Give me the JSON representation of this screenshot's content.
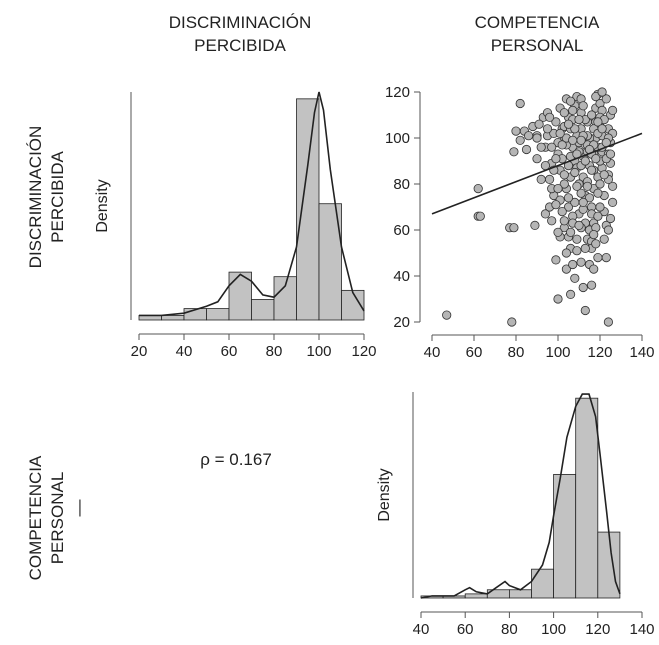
{
  "header": {
    "col1": [
      "DISCRIMINACIÓN",
      "PERCIBIDA"
    ],
    "col2": [
      "COMPETENCIA",
      "PERSONAL"
    ]
  },
  "row_labels": {
    "row1": [
      "DISCRIMINACIÓN",
      "PERCIBIDA"
    ],
    "row2": [
      "COMPETENCIA",
      "PERSONAL"
    ],
    "row2_mark": "—"
  },
  "correlation_text": "ρ = 0.167",
  "colors": {
    "bar_fill": "#c2c2c2",
    "bar_stroke": "#222222",
    "point_fill": "#b5b5b5",
    "point_stroke": "#333333",
    "line": "#222222",
    "axis": "#555555"
  },
  "chart_data": [
    {
      "id": "hist_discriminacion",
      "type": "bar",
      "ylabel": "Density",
      "xlim": [
        20,
        120
      ],
      "x_ticks": [
        "20",
        "40",
        "60",
        "80",
        "100",
        "120"
      ],
      "bins": [
        {
          "x0": 20,
          "x1": 30,
          "value": 0.02
        },
        {
          "x0": 30,
          "x1": 40,
          "value": 0.02
        },
        {
          "x0": 40,
          "x1": 50,
          "value": 0.05
        },
        {
          "x0": 50,
          "x1": 60,
          "value": 0.05
        },
        {
          "x0": 60,
          "x1": 70,
          "value": 0.21
        },
        {
          "x0": 70,
          "x1": 80,
          "value": 0.09
        },
        {
          "x0": 80,
          "x1": 90,
          "value": 0.19
        },
        {
          "x0": 90,
          "x1": 100,
          "value": 0.97
        },
        {
          "x0": 100,
          "x1": 110,
          "value": 0.51
        },
        {
          "x0": 110,
          "x1": 120,
          "value": 0.13
        }
      ],
      "density_curve": [
        [
          20,
          0.02
        ],
        [
          30,
          0.02
        ],
        [
          40,
          0.03
        ],
        [
          50,
          0.06
        ],
        [
          55,
          0.08
        ],
        [
          60,
          0.15
        ],
        [
          65,
          0.2
        ],
        [
          70,
          0.17
        ],
        [
          75,
          0.11
        ],
        [
          80,
          0.1
        ],
        [
          85,
          0.15
        ],
        [
          90,
          0.32
        ],
        [
          95,
          0.68
        ],
        [
          98,
          0.91
        ],
        [
          100,
          1.0
        ],
        [
          102,
          0.92
        ],
        [
          105,
          0.66
        ],
        [
          110,
          0.32
        ],
        [
          115,
          0.12
        ],
        [
          120,
          0.04
        ]
      ]
    },
    {
      "id": "scatter_competencia_vs_discriminacion",
      "type": "scatter",
      "xlim": [
        40,
        140
      ],
      "ylim": [
        20,
        120
      ],
      "x_ticks": [
        "40",
        "60",
        "80",
        "100",
        "120",
        "140"
      ],
      "y_ticks": [
        "20",
        "40",
        "60",
        "80",
        "100",
        "120"
      ],
      "fit_line": [
        [
          40,
          67
        ],
        [
          140,
          102
        ]
      ],
      "points": [
        [
          47,
          23
        ],
        [
          62,
          78
        ],
        [
          62,
          66
        ],
        [
          63,
          66
        ],
        [
          77,
          61
        ],
        [
          79,
          61
        ],
        [
          78,
          20
        ],
        [
          82,
          115
        ],
        [
          80,
          103
        ],
        [
          82,
          99
        ],
        [
          84,
          103
        ],
        [
          86,
          101
        ],
        [
          88,
          105
        ],
        [
          90,
          101
        ],
        [
          79,
          94
        ],
        [
          85,
          95
        ],
        [
          93,
          109
        ],
        [
          95,
          111
        ],
        [
          89,
          62
        ],
        [
          94,
          67
        ],
        [
          96,
          70
        ],
        [
          98,
          75
        ],
        [
          92,
          82
        ],
        [
          96,
          82
        ],
        [
          97,
          89
        ],
        [
          94,
          96
        ],
        [
          100,
          93
        ],
        [
          95,
          101
        ],
        [
          90,
          91
        ],
        [
          100,
          30
        ],
        [
          101,
          57
        ],
        [
          103,
          61
        ],
        [
          99,
          47
        ],
        [
          104,
          43
        ],
        [
          105,
          70
        ],
        [
          104,
          78
        ],
        [
          106,
          83
        ],
        [
          108,
          90
        ],
        [
          107,
          96
        ],
        [
          103,
          99
        ],
        [
          102,
          104
        ],
        [
          105,
          109
        ],
        [
          108,
          114
        ],
        [
          109,
          118
        ],
        [
          111,
          117
        ],
        [
          111,
          111
        ],
        [
          111,
          104
        ],
        [
          110,
          98
        ],
        [
          112,
          92
        ],
        [
          112,
          83
        ],
        [
          113,
          75
        ],
        [
          113,
          63
        ],
        [
          112,
          35
        ],
        [
          113,
          25
        ],
        [
          114,
          56
        ],
        [
          115,
          45
        ],
        [
          116,
          55
        ],
        [
          117,
          63
        ],
        [
          116,
          70
        ],
        [
          117,
          78
        ],
        [
          117,
          86
        ],
        [
          117,
          93
        ],
        [
          118,
          100
        ],
        [
          118,
          107
        ],
        [
          118,
          113
        ],
        [
          119,
          119
        ],
        [
          120,
          115
        ],
        [
          121,
          112
        ],
        [
          120,
          105
        ],
        [
          121,
          101
        ],
        [
          121,
          94
        ],
        [
          121,
          87
        ],
        [
          122,
          75
        ],
        [
          122,
          68
        ],
        [
          123,
          62
        ],
        [
          122,
          56
        ],
        [
          123,
          48
        ],
        [
          124,
          20
        ],
        [
          125,
          65
        ],
        [
          124,
          84
        ],
        [
          124,
          93
        ],
        [
          125,
          98
        ],
        [
          124,
          104
        ],
        [
          125,
          110
        ],
        [
          126,
          102
        ],
        [
          126,
          112
        ],
        [
          123,
          117
        ],
        [
          101,
          113
        ],
        [
          103,
          105
        ],
        [
          104,
          97
        ],
        [
          101,
          86
        ],
        [
          103,
          80
        ],
        [
          101,
          73
        ],
        [
          103,
          64
        ],
        [
          105,
          57
        ],
        [
          106,
          52
        ],
        [
          107,
          45
        ],
        [
          108,
          39
        ],
        [
          106,
          32
        ],
        [
          106,
          104
        ],
        [
          107,
          108
        ],
        [
          109,
          101
        ],
        [
          110,
          94
        ],
        [
          109,
          87
        ],
        [
          110,
          80
        ],
        [
          108,
          72
        ],
        [
          110,
          67
        ],
        [
          111,
          61
        ],
        [
          109,
          51
        ],
        [
          114,
          107
        ],
        [
          115,
          100
        ],
        [
          114,
          94
        ],
        [
          115,
          88
        ],
        [
          114,
          81
        ],
        [
          115,
          74
        ],
        [
          116,
          67
        ],
        [
          115,
          60
        ],
        [
          116,
          52
        ],
        [
          114,
          101
        ],
        [
          113,
          108
        ],
        [
          112,
          114
        ],
        [
          117,
          104
        ],
        [
          119,
          96
        ],
        [
          120,
          90
        ],
        [
          119,
          83
        ],
        [
          119,
          76
        ],
        [
          120,
          70
        ],
        [
          118,
          61
        ],
        [
          118,
          54
        ],
        [
          119,
          48
        ],
        [
          117,
          43
        ],
        [
          116,
          36
        ],
        [
          118,
          118
        ],
        [
          120,
          109
        ],
        [
          121,
          120
        ],
        [
          99,
          107
        ],
        [
          98,
          102
        ],
        [
          100,
          98
        ],
        [
          102,
          91
        ],
        [
          98,
          86
        ],
        [
          97,
          78
        ],
        [
          99,
          71
        ],
        [
          97,
          64
        ],
        [
          100,
          59
        ],
        [
          96,
          109
        ],
        [
          95,
          104
        ],
        [
          97,
          96
        ],
        [
          104,
          117
        ],
        [
          106,
          116
        ],
        [
          107,
          112
        ],
        [
          105,
          88
        ],
        [
          106,
          92
        ],
        [
          108,
          85
        ],
        [
          111,
          88
        ],
        [
          113,
          97
        ],
        [
          116,
          110
        ],
        [
          119,
          102
        ],
        [
          122,
          108
        ],
        [
          124,
          100
        ],
        [
          125,
          89
        ],
        [
          126,
          79
        ],
        [
          126,
          72
        ],
        [
          124,
          60
        ],
        [
          112,
          69
        ],
        [
          111,
          76
        ],
        [
          109,
          79
        ],
        [
          107,
          66
        ],
        [
          106,
          59
        ],
        [
          104,
          50
        ],
        [
          102,
          68
        ],
        [
          100,
          78
        ],
        [
          99,
          91
        ],
        [
          94,
          88
        ],
        [
          92,
          96
        ],
        [
          90,
          100
        ],
        [
          91,
          106
        ],
        [
          102,
          97
        ],
        [
          104,
          100
        ],
        [
          108,
          104
        ],
        [
          110,
          108
        ],
        [
          112,
          101
        ],
        [
          114,
          97
        ],
        [
          116,
          93
        ],
        [
          117,
          97
        ],
        [
          119,
          107
        ],
        [
          121,
          96
        ],
        [
          123,
          91
        ],
        [
          124,
          82
        ],
        [
          122,
          84
        ],
        [
          120,
          80
        ],
        [
          119,
          66
        ],
        [
          117,
          58
        ],
        [
          113,
          52
        ],
        [
          111,
          46
        ],
        [
          109,
          56
        ],
        [
          107,
          63
        ],
        [
          105,
          74
        ],
        [
          103,
          84
        ],
        [
          101,
          102
        ],
        [
          103,
          111
        ],
        [
          105,
          106
        ],
        [
          107,
          99
        ],
        [
          109,
          93
        ],
        [
          111,
          99
        ],
        [
          113,
          90
        ],
        [
          115,
          95
        ],
        [
          121,
          104
        ],
        [
          123,
          98
        ],
        [
          125,
          93
        ],
        [
          118,
          91
        ],
        [
          116,
          86
        ],
        [
          114,
          79
        ],
        [
          112,
          72
        ],
        [
          110,
          62
        ]
      ]
    },
    {
      "id": "hist_competencia",
      "type": "bar",
      "ylabel": "Density",
      "xlim": [
        40,
        140
      ],
      "x_ticks": [
        "40",
        "60",
        "80",
        "100",
        "120",
        "140"
      ],
      "bins": [
        {
          "x0": 40,
          "x1": 50,
          "value": 0.01
        },
        {
          "x0": 50,
          "x1": 60,
          "value": 0.01
        },
        {
          "x0": 60,
          "x1": 70,
          "value": 0.02
        },
        {
          "x0": 70,
          "x1": 80,
          "value": 0.04
        },
        {
          "x0": 80,
          "x1": 90,
          "value": 0.04
        },
        {
          "x0": 90,
          "x1": 100,
          "value": 0.14
        },
        {
          "x0": 100,
          "x1": 110,
          "value": 0.6
        },
        {
          "x0": 110,
          "x1": 120,
          "value": 0.97
        },
        {
          "x0": 120,
          "x1": 130,
          "value": 0.32
        }
      ],
      "density_curve": [
        [
          40,
          0.0
        ],
        [
          45,
          0.01
        ],
        [
          50,
          0.01
        ],
        [
          55,
          0.01
        ],
        [
          60,
          0.04
        ],
        [
          62,
          0.05
        ],
        [
          65,
          0.03
        ],
        [
          70,
          0.02
        ],
        [
          74,
          0.05
        ],
        [
          78,
          0.08
        ],
        [
          80,
          0.06
        ],
        [
          85,
          0.04
        ],
        [
          90,
          0.08
        ],
        [
          95,
          0.16
        ],
        [
          98,
          0.27
        ],
        [
          100,
          0.4
        ],
        [
          103,
          0.58
        ],
        [
          106,
          0.78
        ],
        [
          110,
          0.93
        ],
        [
          113,
          0.99
        ],
        [
          116,
          0.99
        ],
        [
          119,
          0.88
        ],
        [
          121,
          0.7
        ],
        [
          124,
          0.42
        ],
        [
          126,
          0.22
        ],
        [
          128,
          0.08
        ],
        [
          130,
          0.02
        ]
      ]
    }
  ]
}
